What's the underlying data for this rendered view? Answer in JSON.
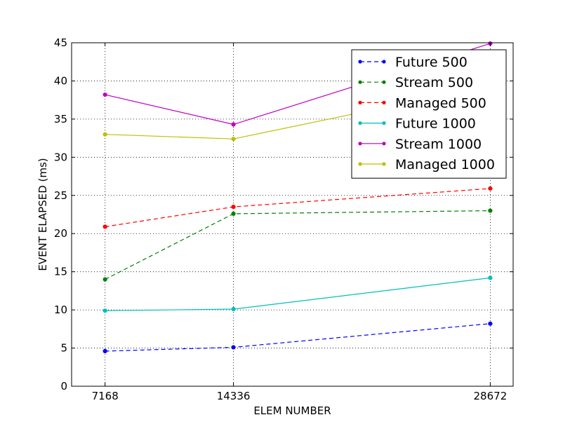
{
  "chart_data": {
    "type": "line",
    "title": "",
    "xlabel": "ELEM NUMBER",
    "ylabel": "EVENT ELAPSED (ms)",
    "x": [
      7168,
      14336,
      28672
    ],
    "x_tick_labels": [
      "7168",
      "14336",
      "28672"
    ],
    "xlim": [
      5300,
      29950
    ],
    "ylim": [
      0,
      45
    ],
    "y_ticks": [
      0,
      5,
      10,
      15,
      20,
      25,
      30,
      35,
      40,
      45
    ],
    "y_tick_labels": [
      "0",
      "5",
      "10",
      "15",
      "20",
      "25",
      "30",
      "35",
      "40",
      "45"
    ],
    "grid": true,
    "legend_position": "top-right",
    "series": [
      {
        "name": "Future 500",
        "values": [
          4.6,
          5.1,
          8.2
        ],
        "color": "#0000ff",
        "style": "dashed"
      },
      {
        "name": "Stream 500",
        "values": [
          14.0,
          22.6,
          23.0
        ],
        "color": "#008000",
        "style": "dashed"
      },
      {
        "name": "Managed 500",
        "values": [
          20.9,
          23.5,
          25.9
        ],
        "color": "#ff0000",
        "style": "dashed"
      },
      {
        "name": "Future 1000",
        "values": [
          9.9,
          10.1,
          14.2
        ],
        "color": "#00bfbf",
        "style": "solid"
      },
      {
        "name": "Stream 1000",
        "values": [
          38.2,
          34.3,
          44.9
        ],
        "color": "#bf00bf",
        "style": "solid"
      },
      {
        "name": "Managed 1000",
        "values": [
          33.0,
          32.4,
          39.4
        ],
        "color": "#bfbf00",
        "style": "solid"
      }
    ]
  }
}
